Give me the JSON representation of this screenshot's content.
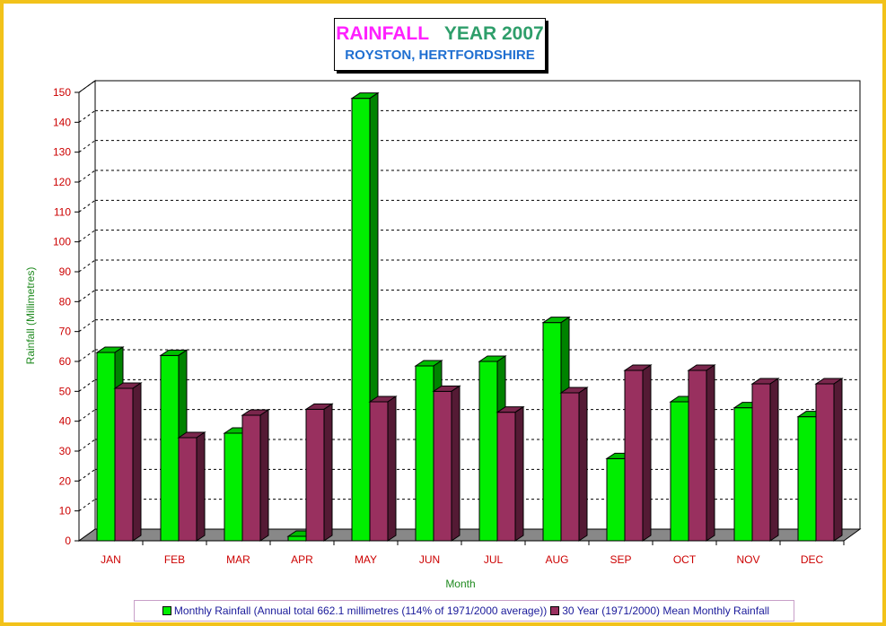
{
  "title": {
    "part1": "RAINFALL",
    "part2": "YEAR 2007",
    "subtitle": "ROYSTON, HERTFORDSHIRE"
  },
  "colors": {
    "frame": "#f2c21a",
    "series_green": "#00ee00",
    "series_maroon": "#99305f",
    "axis_tick_labels": "#cc0000",
    "axis_titles": "#1f8a1f",
    "legend_text": "#1a1a9a"
  },
  "chart_data": {
    "type": "bar",
    "title": "RAINFALL YEAR 2007",
    "subtitle": "ROYSTON, HERTFORDSHIRE",
    "xlabel": "Month",
    "ylabel": "Rainfall  (Millimetres)",
    "categories": [
      "JAN",
      "FEB",
      "MAR",
      "APR",
      "MAY",
      "JUN",
      "JUL",
      "AUG",
      "SEP",
      "OCT",
      "NOV",
      "DEC"
    ],
    "series": [
      {
        "name": "Monthly Rainfall (Annual total 662.1 millimetres (114% of 1971/2000 average))",
        "color": "#00ee00",
        "values": [
          63,
          62,
          36,
          1.5,
          148,
          58.5,
          60,
          73,
          27.5,
          46.5,
          44.5,
          41.5
        ]
      },
      {
        "name": "30 Year (1971/2000) Mean Monthly Rainfall",
        "color": "#99305f",
        "values": [
          51,
          34.5,
          42,
          44,
          46.5,
          50,
          43,
          49.5,
          57,
          57,
          52.5,
          52.5
        ]
      }
    ],
    "yticks": [
      0,
      10,
      20,
      30,
      40,
      50,
      60,
      70,
      80,
      90,
      100,
      110,
      120,
      130,
      140,
      150
    ],
    "ylim": [
      0,
      150
    ],
    "grid": true,
    "gridline_style": "dashed",
    "legend_position": "bottom",
    "render_3d": true
  }
}
